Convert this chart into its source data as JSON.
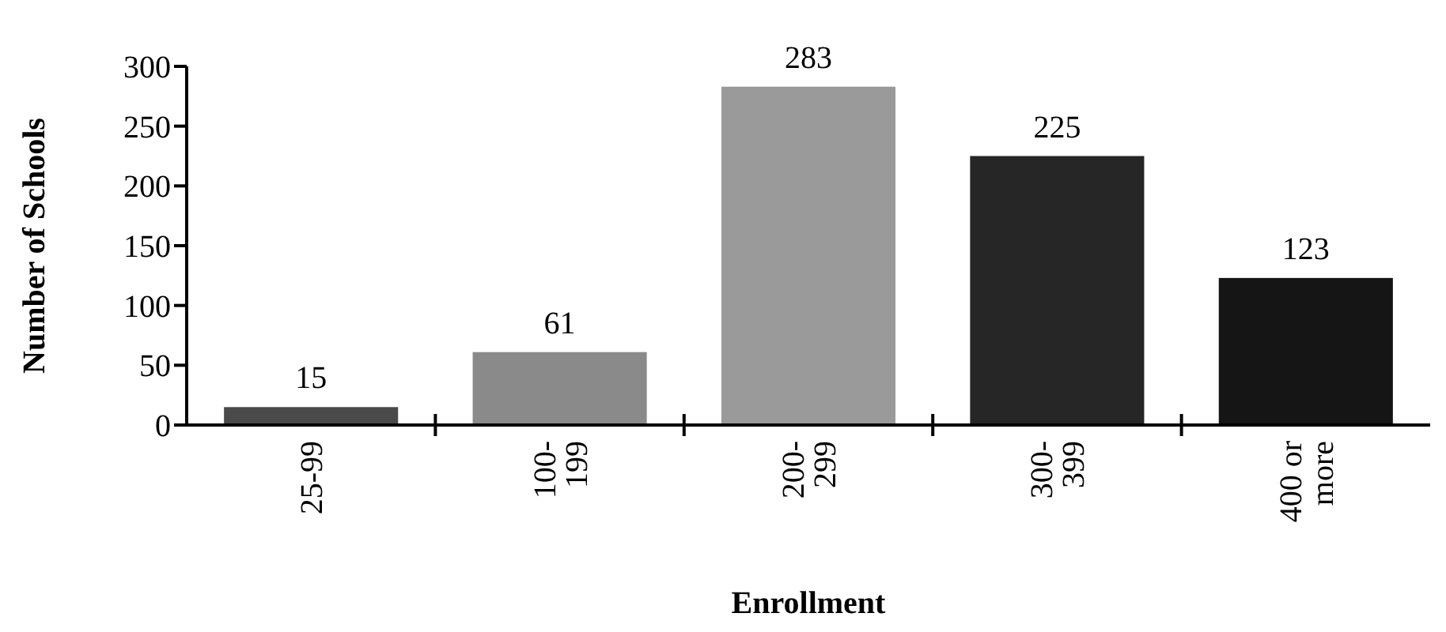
{
  "chart_data": {
    "type": "bar",
    "xlabel": "Enrollment",
    "ylabel": "Number of Schools",
    "categories": [
      "25-99",
      "100-\n199",
      "200-\n299",
      "300-\n399",
      "400 or\nmore"
    ],
    "values": [
      15,
      61,
      283,
      225,
      123
    ],
    "colors": [
      "#4a4a4a",
      "#8a8a8a",
      "#9a9a9a",
      "#262626",
      "#151515"
    ],
    "ylim": [
      0,
      300
    ],
    "yticks": [
      0,
      50,
      100,
      150,
      200,
      250,
      300
    ],
    "data_labels": true,
    "grid": false
  }
}
